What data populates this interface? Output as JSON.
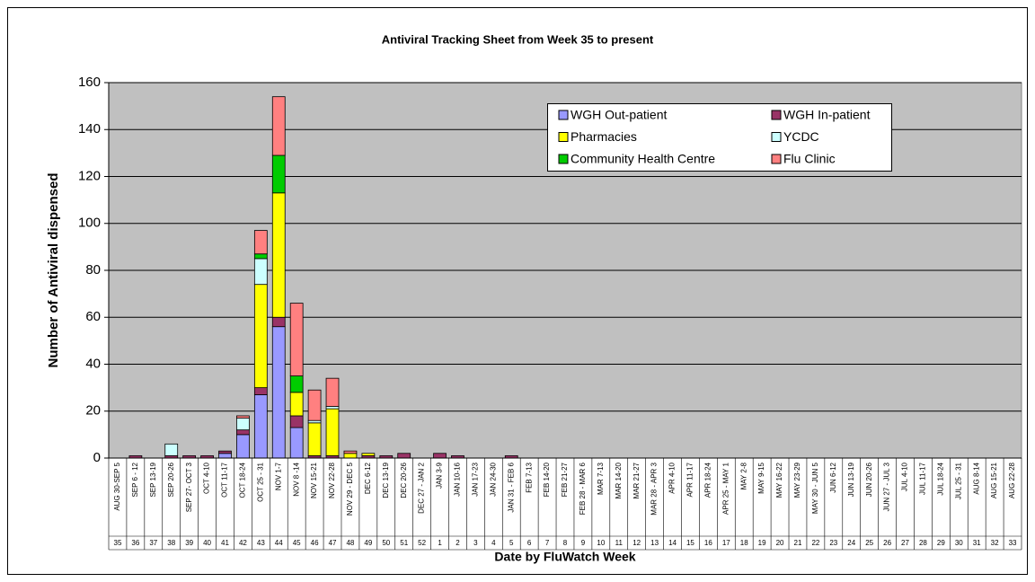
{
  "chart_data": {
    "type": "bar",
    "stacked": true,
    "title": "Antiviral Tracking Sheet from Week 35 to present",
    "y_label": "Number of Antiviral dispensed",
    "x_label": "Date by FluWatch Week",
    "categories": [
      "AUG 30-SEP 5",
      "SEP 6 - 12",
      "SEP 13-19",
      "SEP 20-26",
      "SEP 27- OCT 3",
      "OCT 4-10",
      "OCT 11-17",
      "OCT 18-24",
      "OCT 25 - 31",
      "NOV 1-7",
      "NOV 8 -14",
      "NOV 15-21",
      "NOV 22-28",
      "NOV 29 - DEC 5",
      "DEC 6-12",
      "DEC 13-19",
      "DEC 20-26",
      "DEC 27 - JAN 2",
      "JAN 3-9",
      "JAN 10-16",
      "JAN 17-23",
      "JAN 24-30",
      "JAN 31 - FEB 6",
      "FEB 7-13",
      "FEB 14-20",
      "FEB 21-27",
      "FEB 28 - MAR 6",
      "MAR 7-13",
      "MAR 14-20",
      "MAR 21-27",
      "MAR 28 - APR 3",
      "APR 4-10",
      "APR 11-17",
      "APR 18-24",
      "APR 25 - MAY 1",
      "MAY 2-8",
      "MAY 9-15",
      "MAY 16-22",
      "MAY 23-29",
      "MAY 30 - JUN 5",
      "JUN 6-12",
      "JUN 13-19",
      "JUN 20-26",
      "JUN 27 - JUL 3",
      "JUL 4-10",
      "JUL 11-17",
      "JUL 18-24",
      "JUL 25 - 31",
      "AUG 8-14",
      "AUG 15-21",
      "AUG 22-28"
    ],
    "weeks": [
      35,
      36,
      37,
      38,
      39,
      40,
      41,
      42,
      43,
      44,
      45,
      46,
      47,
      48,
      49,
      50,
      51,
      52,
      1,
      2,
      3,
      4,
      5,
      6,
      7,
      8,
      9,
      10,
      11,
      12,
      13,
      14,
      15,
      16,
      17,
      18,
      19,
      20,
      21,
      22,
      23,
      24,
      25,
      26,
      27,
      28,
      29,
      30,
      31,
      32,
      33
    ],
    "series": [
      {
        "name": "WGH Out-patient",
        "color": "#9999ff",
        "values": [
          0,
          0,
          0,
          0,
          0,
          0,
          2,
          10,
          27,
          56,
          13,
          0,
          0,
          0,
          0,
          0,
          0,
          0,
          0,
          0,
          0,
          0,
          0,
          0,
          0,
          0,
          0,
          0,
          0,
          0,
          0,
          0,
          0,
          0,
          0,
          0,
          0,
          0,
          0,
          0,
          0,
          0,
          0,
          0,
          0,
          0,
          0,
          0,
          0,
          0,
          0
        ]
      },
      {
        "name": "WGH In-patient",
        "color": "#993366",
        "values": [
          0,
          1,
          0,
          1,
          1,
          1,
          1,
          2,
          3,
          4,
          5,
          1,
          1,
          0,
          1,
          1,
          2,
          0,
          2,
          1,
          0,
          0,
          1,
          0,
          0,
          0,
          0,
          0,
          0,
          0,
          0,
          0,
          0,
          0,
          0,
          0,
          0,
          0,
          0,
          0,
          0,
          0,
          0,
          0,
          0,
          0,
          0,
          0,
          0,
          0,
          0
        ]
      },
      {
        "name": "Pharmacies",
        "color": "#ffff00",
        "values": [
          0,
          0,
          0,
          0,
          0,
          0,
          0,
          0,
          44,
          53,
          10,
          14,
          20,
          2,
          1,
          0,
          0,
          0,
          0,
          0,
          0,
          0,
          0,
          0,
          0,
          0,
          0,
          0,
          0,
          0,
          0,
          0,
          0,
          0,
          0,
          0,
          0,
          0,
          0,
          0,
          0,
          0,
          0,
          0,
          0,
          0,
          0,
          0,
          0,
          0,
          0
        ]
      },
      {
        "name": "YCDC",
        "color": "#ccffff",
        "values": [
          0,
          0,
          0,
          5,
          0,
          0,
          0,
          5,
          11,
          0,
          0,
          1,
          1,
          0,
          0,
          0,
          0,
          0,
          0,
          0,
          0,
          0,
          0,
          0,
          0,
          0,
          0,
          0,
          0,
          0,
          0,
          0,
          0,
          0,
          0,
          0,
          0,
          0,
          0,
          0,
          0,
          0,
          0,
          0,
          0,
          0,
          0,
          0,
          0,
          0,
          0
        ]
      },
      {
        "name": "Community Health Centre",
        "color": "#00cc00",
        "values": [
          0,
          0,
          0,
          0,
          0,
          0,
          0,
          0,
          2,
          16,
          7,
          0,
          0,
          0,
          0,
          0,
          0,
          0,
          0,
          0,
          0,
          0,
          0,
          0,
          0,
          0,
          0,
          0,
          0,
          0,
          0,
          0,
          0,
          0,
          0,
          0,
          0,
          0,
          0,
          0,
          0,
          0,
          0,
          0,
          0,
          0,
          0,
          0,
          0,
          0,
          0
        ]
      },
      {
        "name": "Flu Clinic",
        "color": "#ff8080",
        "values": [
          0,
          0,
          0,
          0,
          0,
          0,
          0,
          1,
          10,
          25,
          31,
          13,
          12,
          1,
          0,
          0,
          0,
          0,
          0,
          0,
          0,
          0,
          0,
          0,
          0,
          0,
          0,
          0,
          0,
          0,
          0,
          0,
          0,
          0,
          0,
          0,
          0,
          0,
          0,
          0,
          0,
          0,
          0,
          0,
          0,
          0,
          0,
          0,
          0,
          0,
          0
        ]
      }
    ],
    "ylim": [
      0,
      160
    ],
    "yticks": [
      0,
      20,
      40,
      60,
      80,
      100,
      120,
      140,
      160
    ],
    "grid": true
  }
}
